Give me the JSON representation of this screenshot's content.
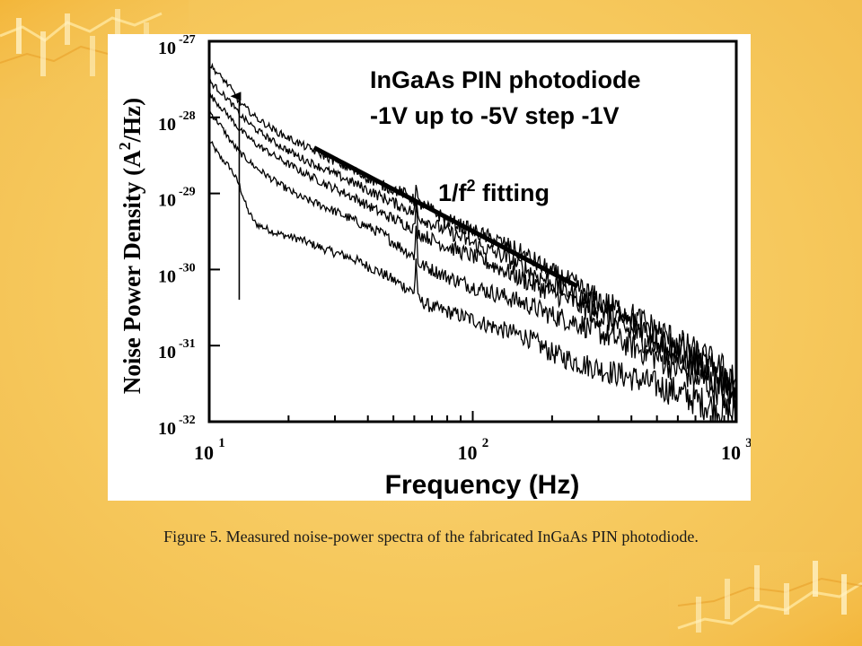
{
  "caption": "Figure 5. Measured noise-power spectra of the fabricated InGaAs PIN photodiode.",
  "chart_data": {
    "type": "line",
    "x_scale": "log",
    "y_scale": "log",
    "xlim": [
      10,
      1000
    ],
    "ylim": [
      1e-32,
      1e-27
    ],
    "xlabel": "Frequency (Hz)",
    "ylabel_parts": [
      "Noise Power Density (A",
      "2",
      "/Hz)"
    ],
    "x_ticks": [
      {
        "value": 10,
        "base": "10",
        "exp": "1"
      },
      {
        "value": 100,
        "base": "10",
        "exp": "2"
      },
      {
        "value": 1000,
        "base": "10",
        "exp": "3"
      }
    ],
    "y_ticks": [
      {
        "value": 1e-27,
        "base": "10",
        "exp": "-27"
      },
      {
        "value": 1e-28,
        "base": "10",
        "exp": "-28"
      },
      {
        "value": 1e-29,
        "base": "10",
        "exp": "-29"
      },
      {
        "value": 1e-30,
        "base": "10",
        "exp": "-30"
      },
      {
        "value": 1e-31,
        "base": "10",
        "exp": "-31"
      },
      {
        "value": 1e-32,
        "base": "10",
        "exp": "-32"
      }
    ],
    "annotation_title": "InGaAs PIN photodiode",
    "annotation_bias": "-1V up to -5V step -1V",
    "fit_label_parts": [
      "1/f",
      "2",
      " fitting"
    ],
    "fit_line": {
      "x": [
        25,
        250
      ],
      "y": [
        4e-29,
        6e-31
      ]
    },
    "arrow": {
      "x": 13,
      "y_from": 4e-31,
      "y_to": 2e-28
    },
    "series": [
      {
        "points": [
          [
            10,
            5e-29
          ],
          [
            11,
            3e-29
          ],
          [
            12,
            2.2e-29
          ],
          [
            13,
            1.3e-29
          ],
          [
            14,
            6e-30
          ],
          [
            15,
            4e-30
          ],
          [
            18,
            3e-30
          ],
          [
            22,
            2.5e-30
          ],
          [
            28,
            1.8e-30
          ],
          [
            35,
            1.4e-30
          ],
          [
            45,
            9e-31
          ],
          [
            55,
            6e-31
          ],
          [
            60,
            5e-31
          ],
          [
            61,
            1.5e-30
          ],
          [
            62,
            4e-31
          ],
          [
            70,
            3.2e-31
          ],
          [
            80,
            2.8e-31
          ],
          [
            100,
            2.2e-31
          ],
          [
            130,
            1.6e-31
          ],
          [
            160,
            1.3e-31
          ],
          [
            200,
            8e-32
          ],
          [
            250,
            6e-32
          ],
          [
            300,
            5e-32
          ],
          [
            400,
            3.8e-32
          ],
          [
            500,
            3e-32
          ],
          [
            600,
            2.4e-32
          ],
          [
            800,
            1.6e-32
          ],
          [
            1000,
            1.2e-32
          ]
        ]
      },
      {
        "points": [
          [
            10,
            1.2e-28
          ],
          [
            11,
            8e-29
          ],
          [
            12,
            5e-29
          ],
          [
            13,
            3.5e-29
          ],
          [
            15,
            2.2e-29
          ],
          [
            18,
            1.4e-29
          ],
          [
            22,
            9e-30
          ],
          [
            28,
            6.5e-30
          ],
          [
            35,
            4.5e-30
          ],
          [
            45,
            3e-30
          ],
          [
            55,
            1.8e-30
          ],
          [
            60,
            1.5e-30
          ],
          [
            61,
            4e-30
          ],
          [
            62,
            1.2e-30
          ],
          [
            70,
            1e-30
          ],
          [
            80,
            8e-31
          ],
          [
            100,
            6e-31
          ],
          [
            130,
            4.5e-31
          ],
          [
            160,
            3.5e-31
          ],
          [
            200,
            2.5e-31
          ],
          [
            250,
            2e-31
          ],
          [
            300,
            1.5e-31
          ],
          [
            400,
            1e-31
          ],
          [
            500,
            7e-32
          ],
          [
            600,
            5e-32
          ],
          [
            800,
            3e-32
          ],
          [
            1000,
            2e-32
          ]
        ]
      },
      {
        "points": [
          [
            10,
            2e-28
          ],
          [
            11,
            1.4e-28
          ],
          [
            12,
            1e-28
          ],
          [
            13,
            7e-29
          ],
          [
            15,
            4.5e-29
          ],
          [
            18,
            3e-29
          ],
          [
            22,
            2e-29
          ],
          [
            28,
            1.3e-29
          ],
          [
            35,
            9e-30
          ],
          [
            45,
            5.5e-30
          ],
          [
            55,
            4e-30
          ],
          [
            60,
            3.5e-30
          ],
          [
            61,
            7e-30
          ],
          [
            62,
            3e-30
          ],
          [
            70,
            2.5e-30
          ],
          [
            80,
            2e-30
          ],
          [
            100,
            1.5e-30
          ],
          [
            130,
            1e-30
          ],
          [
            160,
            7e-31
          ],
          [
            200,
            5e-31
          ],
          [
            250,
            3.5e-31
          ],
          [
            300,
            2.5e-31
          ],
          [
            400,
            1.5e-31
          ],
          [
            500,
            1e-31
          ],
          [
            600,
            7e-32
          ],
          [
            800,
            4e-32
          ],
          [
            1000,
            2.5e-32
          ]
        ]
      },
      {
        "points": [
          [
            10,
            3e-28
          ],
          [
            11,
            2.2e-28
          ],
          [
            12,
            1.6e-28
          ],
          [
            13,
            1.1e-28
          ],
          [
            15,
            7e-29
          ],
          [
            18,
            4.5e-29
          ],
          [
            22,
            3e-29
          ],
          [
            28,
            2e-29
          ],
          [
            35,
            1.4e-29
          ],
          [
            45,
            9e-30
          ],
          [
            55,
            6.5e-30
          ],
          [
            60,
            5.5e-30
          ],
          [
            61,
            9e-30
          ],
          [
            62,
            5e-30
          ],
          [
            70,
            4e-30
          ],
          [
            80,
            3.2e-30
          ],
          [
            100,
            2.2e-30
          ],
          [
            130,
            1.5e-30
          ],
          [
            160,
            1e-30
          ],
          [
            200,
            6.5e-31
          ],
          [
            250,
            4.5e-31
          ],
          [
            300,
            3.2e-31
          ],
          [
            400,
            2e-31
          ],
          [
            500,
            1.3e-31
          ],
          [
            600,
            9e-32
          ],
          [
            800,
            5e-32
          ],
          [
            1000,
            3e-32
          ]
        ]
      },
      {
        "points": [
          [
            10,
            5e-28
          ],
          [
            11,
            3.5e-28
          ],
          [
            12,
            2.5e-28
          ],
          [
            13,
            1.6e-28
          ],
          [
            15,
            1e-28
          ],
          [
            18,
            6.5e-29
          ],
          [
            22,
            4.5e-29
          ],
          [
            28,
            3e-29
          ],
          [
            35,
            2e-29
          ],
          [
            45,
            1.3e-29
          ],
          [
            55,
            1e-29
          ],
          [
            60,
            8e-30
          ],
          [
            61,
            1.3e-29
          ],
          [
            62,
            7.5e-30
          ],
          [
            70,
            6e-30
          ],
          [
            80,
            4.5e-30
          ],
          [
            100,
            3.2e-30
          ],
          [
            130,
            2.2e-30
          ],
          [
            160,
            1.5e-30
          ],
          [
            200,
            9e-31
          ],
          [
            250,
            6e-31
          ],
          [
            300,
            4e-31
          ],
          [
            400,
            2.5e-31
          ],
          [
            500,
            1.6e-31
          ],
          [
            600,
            1.1e-31
          ],
          [
            800,
            6e-32
          ],
          [
            1000,
            3.5e-32
          ]
        ]
      }
    ]
  }
}
